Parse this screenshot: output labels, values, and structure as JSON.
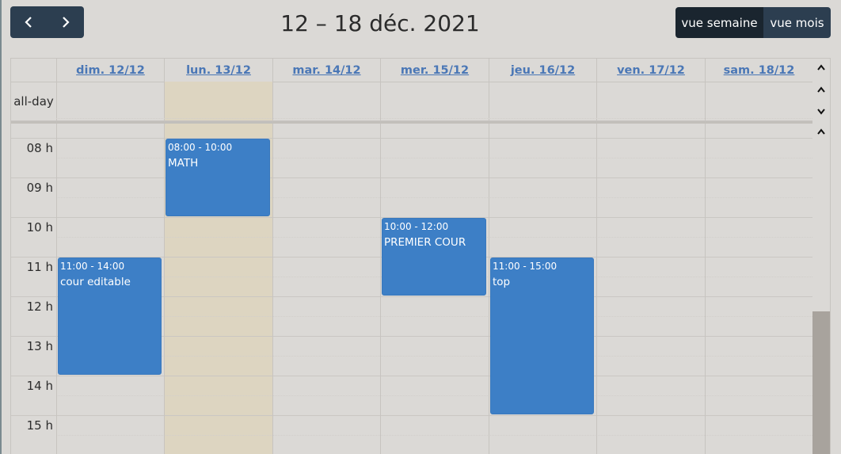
{
  "toolbar": {
    "prev_icon": "chevron-left-icon",
    "next_icon": "chevron-right-icon",
    "title": "12 – 18 déc. 2021",
    "views": [
      {
        "label": "vue semaine",
        "active": true
      },
      {
        "label": "vue mois",
        "active": false
      }
    ]
  },
  "calendar": {
    "days": [
      {
        "label": "dim. 12/12",
        "today": false
      },
      {
        "label": "lun. 13/12",
        "today": true
      },
      {
        "label": "mar. 14/12",
        "today": false
      },
      {
        "label": "mer. 15/12",
        "today": false
      },
      {
        "label": "jeu. 16/12",
        "today": false
      },
      {
        "label": "ven. 17/12",
        "today": false
      },
      {
        "label": "sam. 18/12",
        "today": false
      }
    ],
    "allday_label": "all-day",
    "hours": [
      "08 h",
      "09 h",
      "10 h",
      "11 h",
      "12 h",
      "13 h",
      "14 h",
      "15 h"
    ],
    "events": [
      {
        "day": 1,
        "start": 8,
        "end": 10,
        "time": "08:00 - 10:00",
        "title": "MATH"
      },
      {
        "day": 3,
        "start": 10,
        "end": 12,
        "time": "10:00 - 12:00",
        "title": "PREMIER COUR"
      },
      {
        "day": 0,
        "start": 11,
        "end": 14,
        "time": "11:00 - 14:00",
        "title": "cour editable"
      },
      {
        "day": 4,
        "start": 11,
        "end": 15,
        "time": "11:00 - 15:00",
        "title": "top"
      }
    ]
  },
  "colors": {
    "accent": "#2c3e50",
    "accent_dark": "#1a252f",
    "event": "#3d7fc6",
    "today": "#ddd5c1",
    "link": "#4a77b6"
  }
}
